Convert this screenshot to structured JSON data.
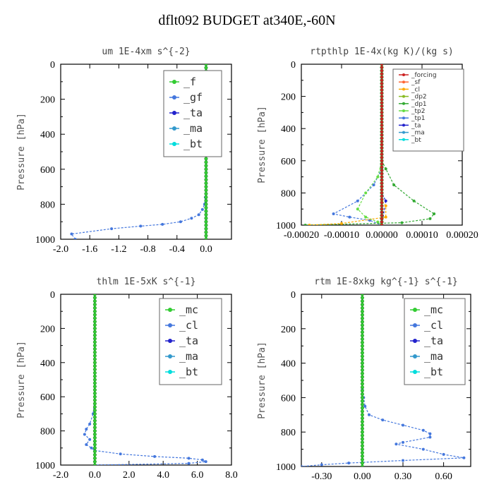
{
  "figure": {
    "title": "dflt092  BUDGET at340E,-60N"
  },
  "chart_data": [
    {
      "type": "line",
      "title": "um   1E-4xm  s^{-2}",
      "ylabel": "Pressure [hPa]",
      "xlim": [
        -2.0,
        0.35
      ],
      "ylim": [
        1000,
        0
      ],
      "xticks": [
        "-2.0",
        "-1.6",
        "-1.2",
        "-0.8",
        "-0.4",
        "0.0"
      ],
      "yticks": [
        "0",
        "200",
        "400",
        "600",
        "800",
        "1000"
      ],
      "legend_position": "top-right",
      "series": [
        {
          "name": "_f",
          "color": "#33cc33",
          "x": [
            0,
            0,
            0,
            0,
            0,
            0,
            0,
            0,
            0,
            0,
            0
          ],
          "y": [
            0,
            100,
            200,
            300,
            400,
            500,
            600,
            700,
            800,
            900,
            1000
          ]
        },
        {
          "name": "_gf",
          "color": "#4477dd",
          "x": [
            0,
            0,
            0,
            0,
            0,
            -0.01,
            -0.02,
            -0.05,
            -0.1,
            -0.2,
            -0.35,
            -0.6,
            -0.9,
            -1.3,
            -1.85,
            -1.8
          ],
          "y": [
            0,
            200,
            400,
            600,
            700,
            760,
            800,
            830,
            860,
            880,
            900,
            915,
            925,
            940,
            970,
            1000
          ]
        },
        {
          "name": "_ta",
          "color": "#2222cc",
          "x": [
            0,
            0,
            0,
            0
          ],
          "y": [
            0,
            500,
            900,
            1000
          ]
        },
        {
          "name": "_ma",
          "color": "#3399cc",
          "x": [
            0,
            0,
            0,
            0
          ],
          "y": [
            0,
            500,
            900,
            1000
          ]
        },
        {
          "name": "_bt",
          "color": "#00dddd",
          "x": [
            0,
            0,
            0,
            0
          ],
          "y": [
            0,
            500,
            900,
            1000
          ]
        }
      ]
    },
    {
      "type": "line",
      "title": "rtpthlp  1E-4x(kg K)/(kg s)",
      "ylabel": "Pressure [hPa]",
      "xlim": [
        -0.0002,
        0.0002
      ],
      "ylim": [
        1000,
        0
      ],
      "xticks": [
        "-0.00020",
        "-0.00010",
        "0.00000",
        "0.00010",
        "0.00020"
      ],
      "yticks": [
        "0",
        "200",
        "400",
        "600",
        "800",
        "1000"
      ],
      "legend_position": "top-right",
      "series": [
        {
          "name": "_forcing",
          "color": "#cc2222",
          "x": [
            0,
            0
          ],
          "y": [
            0,
            1000
          ]
        },
        {
          "name": "_sf",
          "color": "#ff6633",
          "x": [
            0,
            0
          ],
          "y": [
            0,
            1000
          ]
        },
        {
          "name": "_cl",
          "color": "#ffaa00",
          "x": [
            0,
            0,
            1e-05,
            1e-05,
            -0.0001,
            -0.00018
          ],
          "y": [
            0,
            850,
            880,
            950,
            990,
            1000
          ]
        },
        {
          "name": "_dp2",
          "color": "#88bb22",
          "x": [
            0,
            0,
            0
          ],
          "y": [
            0,
            900,
            1000
          ]
        },
        {
          "name": "_dp1",
          "color": "#33aa33",
          "x": [
            0,
            1e-05,
            3e-05,
            8e-05,
            0.00013,
            0.00012,
            5e-05,
            -0.00019
          ],
          "y": [
            600,
            650,
            750,
            850,
            930,
            960,
            985,
            1000
          ]
        },
        {
          "name": "_tp2",
          "color": "#66dd44",
          "x": [
            0,
            -1e-05,
            -4e-05,
            -6e-05,
            -4e-05,
            -1e-05,
            0
          ],
          "y": [
            600,
            700,
            800,
            900,
            950,
            980,
            1000
          ]
        },
        {
          "name": "_tp1",
          "color": "#4477dd",
          "x": [
            0,
            -2e-05,
            -6e-05,
            -0.00012,
            -8e-05,
            -3e-05,
            0
          ],
          "y": [
            650,
            750,
            850,
            930,
            950,
            970,
            1000
          ]
        },
        {
          "name": "_ta",
          "color": "#2222cc",
          "x": [
            0,
            0,
            1e-05,
            0
          ],
          "y": [
            0,
            800,
            850,
            1000
          ]
        },
        {
          "name": "_ma",
          "color": "#3399cc",
          "x": [
            0,
            0
          ],
          "y": [
            0,
            1000
          ]
        },
        {
          "name": "_bt",
          "color": "#00dddd",
          "x": [
            0,
            0
          ],
          "y": [
            0,
            1000
          ]
        }
      ]
    },
    {
      "type": "line",
      "title": "thlm  1E-5xK  s^{-1}",
      "ylabel": "Pressure [hPa]",
      "xlim": [
        -2.0,
        8.0
      ],
      "ylim": [
        1000,
        0
      ],
      "xticks": [
        "-2.0",
        "0.0",
        "2.0",
        "4.0",
        "6.0",
        "8.0"
      ],
      "yticks": [
        "0",
        "200",
        "400",
        "600",
        "800",
        "1000"
      ],
      "legend_position": "top-right",
      "series": [
        {
          "name": "_mc",
          "color": "#33cc33",
          "x": [
            0,
            0,
            0,
            0,
            0,
            0,
            0,
            0,
            0,
            0,
            0
          ],
          "y": [
            0,
            100,
            200,
            300,
            400,
            500,
            600,
            700,
            800,
            900,
            1000
          ]
        },
        {
          "name": "_cl",
          "color": "#4477dd",
          "x": [
            0,
            0,
            -0.1,
            -0.3,
            -0.5,
            -0.6,
            -0.3,
            -0.5,
            -0.2,
            0,
            1.5,
            3.5,
            5.5,
            6.3,
            6.5,
            5.5,
            0
          ],
          "y": [
            0,
            600,
            700,
            760,
            790,
            820,
            850,
            880,
            900,
            915,
            935,
            950,
            960,
            970,
            980,
            990,
            1000
          ]
        },
        {
          "name": "_ta",
          "color": "#2222cc",
          "x": [
            0,
            0,
            0
          ],
          "y": [
            0,
            900,
            1000
          ]
        },
        {
          "name": "_ma",
          "color": "#3399cc",
          "x": [
            0,
            0,
            0
          ],
          "y": [
            0,
            900,
            1000
          ]
        },
        {
          "name": "_bt",
          "color": "#00dddd",
          "x": [
            0,
            0,
            0
          ],
          "y": [
            0,
            900,
            1000
          ]
        }
      ]
    },
    {
      "type": "line",
      "title": "rtm  1E-8xkg kg^{-1} s^{-1}",
      "ylabel": "Pressure [hPa]",
      "xlim": [
        -0.45,
        0.8
      ],
      "ylim": [
        1000,
        0
      ],
      "xticks": [
        "-0.30",
        "0.00",
        "0.30",
        "0.60"
      ],
      "yticks": [
        "0",
        "200",
        "400",
        "600",
        "800",
        "1000"
      ],
      "legend_position": "top-right",
      "series": [
        {
          "name": "_mc",
          "color": "#33cc33",
          "x": [
            0,
            0,
            0,
            0,
            0,
            0,
            0,
            0,
            0,
            0,
            0
          ],
          "y": [
            0,
            100,
            200,
            300,
            400,
            500,
            600,
            700,
            800,
            900,
            1000
          ]
        },
        {
          "name": "_cl",
          "color": "#4477dd",
          "x": [
            0,
            0,
            0.01,
            0.02,
            0.05,
            0.15,
            0.3,
            0.45,
            0.5,
            0.5,
            0.3,
            0.25,
            0.45,
            0.6,
            0.75,
            0.3,
            -0.1,
            -0.3,
            -0.45
          ],
          "y": [
            0,
            550,
            600,
            650,
            700,
            730,
            760,
            790,
            810,
            830,
            860,
            870,
            900,
            930,
            950,
            965,
            980,
            990,
            1000
          ]
        },
        {
          "name": "_ta",
          "color": "#2222cc",
          "x": [
            0,
            0,
            0
          ],
          "y": [
            0,
            900,
            1000
          ]
        },
        {
          "name": "_ma",
          "color": "#3399cc",
          "x": [
            0,
            0,
            0
          ],
          "y": [
            0,
            900,
            1000
          ]
        },
        {
          "name": "_bt",
          "color": "#00dddd",
          "x": [
            0,
            0,
            0
          ],
          "y": [
            0,
            900,
            1000
          ]
        }
      ]
    }
  ]
}
